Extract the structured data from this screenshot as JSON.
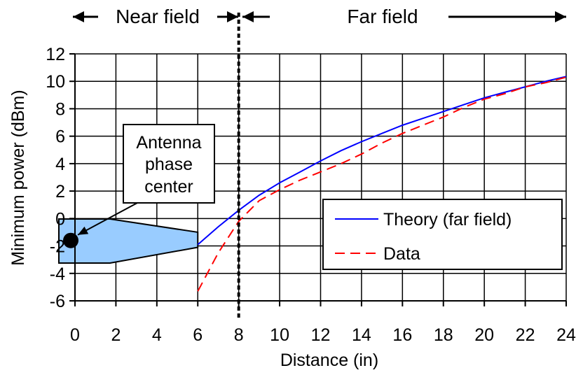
{
  "chart_data": {
    "type": "line",
    "title": "",
    "xlabel": "Distance (in)",
    "ylabel": "Minimum power (dBm)",
    "xlim": [
      0,
      24
    ],
    "ylim": [
      -6,
      12
    ],
    "x_ticks": [
      0,
      2,
      4,
      6,
      8,
      10,
      12,
      14,
      16,
      18,
      20,
      22,
      24
    ],
    "y_ticks": [
      -6,
      -4,
      -2,
      0,
      2,
      4,
      6,
      8,
      10,
      12
    ],
    "grid": true,
    "legend_position": "right",
    "series": [
      {
        "name": "Theory (far field)",
        "color": "#0000ff",
        "style": "solid",
        "x": [
          6,
          7,
          8,
          9,
          10,
          11,
          12,
          13,
          14,
          15,
          16,
          17,
          18,
          19,
          20,
          21,
          22,
          23,
          24
        ],
        "y": [
          -1.9,
          -0.6,
          0.6,
          1.7,
          2.6,
          3.4,
          4.2,
          4.95,
          5.6,
          6.2,
          6.8,
          7.3,
          7.8,
          8.3,
          8.8,
          9.2,
          9.6,
          10.0,
          10.35
        ]
      },
      {
        "name": "Data",
        "color": "#ff0000",
        "style": "dashed",
        "x": [
          6,
          7,
          8,
          9,
          10,
          11,
          12,
          13,
          14,
          15,
          16,
          17,
          18,
          19,
          20,
          21,
          22,
          23,
          24
        ],
        "y": [
          -5.3,
          -2.5,
          -0.2,
          1.3,
          2.1,
          2.8,
          3.4,
          4.0,
          4.7,
          5.5,
          6.2,
          6.8,
          7.4,
          8.1,
          8.7,
          9.1,
          9.6,
          9.9,
          10.3
        ]
      }
    ],
    "boundary": {
      "x": 8,
      "color": "#000000",
      "style": "dotted"
    },
    "regions": [
      {
        "label": "Near field",
        "x_range": [
          0,
          8
        ]
      },
      {
        "label": "Far field",
        "x_range": [
          8,
          24
        ]
      }
    ],
    "annotations": [
      {
        "text_lines": [
          "Antenna",
          "phase",
          "center"
        ]
      }
    ],
    "antenna_fill": "#99ccff"
  }
}
